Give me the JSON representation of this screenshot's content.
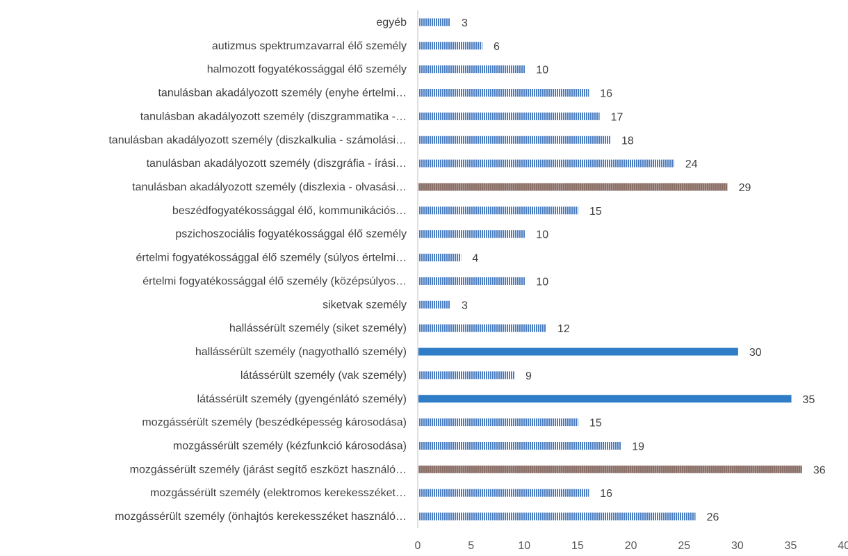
{
  "colors": {
    "bar_striped": "#4a7cc0",
    "bar_solid": "#2e7dc6",
    "bar_brown": "#8b7068",
    "axis": "#bfbfbf"
  },
  "chart_data": {
    "type": "bar",
    "orientation": "horizontal",
    "categories": [
      "mozgássérült személy (önhajtós kerekesszéket használó…",
      "mozgássérült személy (elektromos kerekesszéket…",
      "mozgássérült személy (járást segítő eszközt használó…",
      "mozgássérült személy (kézfunkció károsodása)",
      "mozgássérült személy (beszédképesség károsodása)",
      "látássérült személy (gyengénlátó személy)",
      "látássérült személy (vak személy)",
      "hallássérült személy (nagyothalló személy)",
      "hallássérült személy (siket személy)",
      "siketvak személy",
      "értelmi fogyatékossággal élő személy (középsúlyos…",
      "értelmi fogyatékossággal élő személy (súlyos értelmi…",
      "pszichoszociális fogyatékossággal élő személy",
      "beszédfogyatékossággal élő, kommunikációs…",
      "tanulásban akadályozott személy (diszlexia - olvasási…",
      "tanulásban akadályozott személy (diszgráfia - írási…",
      "tanulásban akadályozott személy (diszkalkulia - számolási…",
      "tanulásban akadályozott személy (diszgrammatika -…",
      "tanulásban akadályozott személy (enyhe értelmi…",
      "halmozott fogyatékossággal élő személy",
      "autizmus spektrumzavarral élő személy",
      "egyéb"
    ],
    "values": [
      26,
      16,
      36,
      19,
      15,
      35,
      9,
      30,
      12,
      3,
      10,
      4,
      10,
      15,
      29,
      24,
      18,
      17,
      16,
      10,
      6,
      3
    ],
    "bar_styles": [
      "striped",
      "striped",
      "brown",
      "striped",
      "striped",
      "solid",
      "striped",
      "solid",
      "striped",
      "striped",
      "striped",
      "striped",
      "striped",
      "striped",
      "brown",
      "striped",
      "striped",
      "striped",
      "striped",
      "striped",
      "striped",
      "striped"
    ],
    "x_ticks": [
      "0",
      "5",
      "10",
      "15",
      "20",
      "25",
      "30",
      "35",
      "40"
    ],
    "xlim": [
      0,
      40
    ],
    "title": "",
    "xlabel": "",
    "ylabel": "",
    "grid": false,
    "legend": "none",
    "data_labels": true
  }
}
